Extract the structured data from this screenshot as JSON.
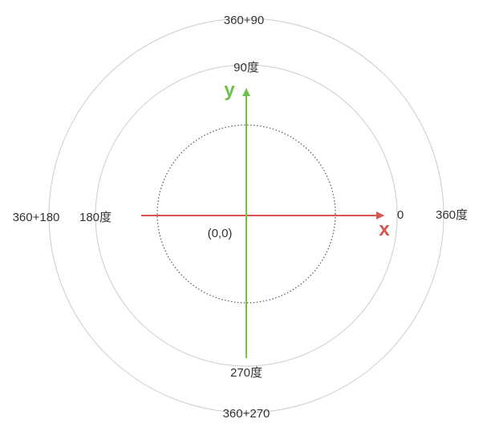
{
  "labels": {
    "top_outer": "360+90",
    "top_inner": "90度",
    "right_inner": "0",
    "right_outer": "360度",
    "left_outer": "360+180",
    "left_inner": "180度",
    "bottom_inner": "270度",
    "bottom_outer": "360+270",
    "origin": "(0,0)",
    "x_axis": "x",
    "y_axis": "y"
  },
  "colors": {
    "x_axis": "#d9534f",
    "y_axis": "#6cc24a",
    "circle": "#cccccc",
    "dotted_circle": "#555555",
    "text": "#333333"
  }
}
